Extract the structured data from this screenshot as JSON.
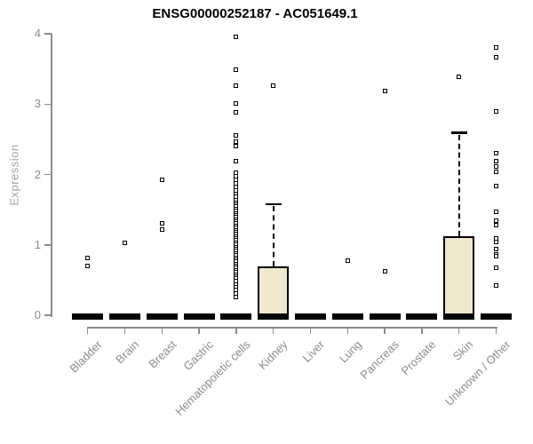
{
  "chart_data": {
    "type": "boxplot",
    "title": "ENSG00000252187 - AC051649.1",
    "ylabel": "Expression",
    "xlabel": "",
    "ylim": [
      0,
      4
    ],
    "yticks": [
      0,
      1,
      2,
      3,
      4
    ],
    "grid": false,
    "legend": false,
    "box_fill": "#efe8cd",
    "box_border": "#000000",
    "axis_color": "#8c8c8c",
    "label_color": "#a2a2a2",
    "title_color": "#000000",
    "categories": [
      "Bladder",
      "Brain",
      "Breast",
      "Gastric",
      "Hematopoietic cells",
      "Kidney",
      "Liver",
      "Lung",
      "Pancreas",
      "Prostate",
      "Skin",
      "Unknown / Other"
    ],
    "series": [
      {
        "category": "Bladder",
        "q1": 0,
        "median": 0,
        "q3": 0,
        "whisker_low": 0,
        "whisker_high": 0,
        "outliers": [
          0.81,
          0.7
        ]
      },
      {
        "category": "Brain",
        "q1": 0,
        "median": 0,
        "q3": 0,
        "whisker_low": 0,
        "whisker_high": 0,
        "outliers": [
          1.03
        ]
      },
      {
        "category": "Breast",
        "q1": 0,
        "median": 0,
        "q3": 0,
        "whisker_low": 0,
        "whisker_high": 0,
        "outliers": [
          1.93,
          1.3,
          1.22
        ]
      },
      {
        "category": "Gastric",
        "q1": 0,
        "median": 0,
        "q3": 0,
        "whisker_low": 0,
        "whisker_high": 0,
        "outliers": []
      },
      {
        "category": "Hematopoietic cells",
        "q1": 0,
        "median": 0,
        "q3": 0,
        "whisker_low": 0,
        "whisker_high": 0,
        "outliers": [
          3.95,
          3.49,
          3.26,
          3.01,
          2.88,
          2.55,
          2.47,
          2.4,
          2.19,
          2.02,
          1.98,
          1.93,
          1.87,
          1.82,
          1.77,
          1.72,
          1.68,
          1.63,
          1.6,
          1.57,
          1.54,
          1.51,
          1.48,
          1.45,
          1.42,
          1.39,
          1.36,
          1.33,
          1.3,
          1.27,
          1.24,
          1.21,
          1.18,
          1.15,
          1.12,
          1.09,
          1.06,
          1.03,
          1.0,
          0.97,
          0.94,
          0.91,
          0.88,
          0.85,
          0.82,
          0.79,
          0.76,
          0.73,
          0.7,
          0.67,
          0.64,
          0.61,
          0.58,
          0.55,
          0.52,
          0.48,
          0.44,
          0.4,
          0.36,
          0.31,
          0.26
        ]
      },
      {
        "category": "Kidney",
        "q1": 0,
        "median": 0,
        "q3": 0.7,
        "whisker_low": 0,
        "whisker_high": 1.58,
        "outliers": [
          3.26
        ]
      },
      {
        "category": "Liver",
        "q1": 0,
        "median": 0,
        "q3": 0,
        "whisker_low": 0,
        "whisker_high": 0,
        "outliers": []
      },
      {
        "category": "Lung",
        "q1": 0,
        "median": 0,
        "q3": 0,
        "whisker_low": 0,
        "whisker_high": 0,
        "outliers": [
          0.78
        ]
      },
      {
        "category": "Pancreas",
        "q1": 0,
        "median": 0,
        "q3": 0,
        "whisker_low": 0,
        "whisker_high": 0,
        "outliers": [
          3.19,
          0.62
        ]
      },
      {
        "category": "Prostate",
        "q1": 0,
        "median": 0,
        "q3": 0,
        "whisker_low": 0,
        "whisker_high": 0,
        "outliers": []
      },
      {
        "category": "Skin",
        "q1": 0,
        "median": 0,
        "q3": 1.12,
        "whisker_low": 0,
        "whisker_high": 2.59,
        "outliers": [
          3.39
        ]
      },
      {
        "category": "Unknown / Other",
        "q1": 0,
        "median": 0,
        "q3": 0,
        "whisker_low": 0,
        "whisker_high": 0,
        "outliers": [
          3.8,
          3.66,
          2.89,
          2.3,
          2.19,
          2.11,
          2.04,
          1.84,
          1.47,
          1.35,
          1.28,
          1.09,
          1.04,
          0.94,
          0.87,
          0.84,
          0.68,
          0.42
        ]
      }
    ]
  }
}
